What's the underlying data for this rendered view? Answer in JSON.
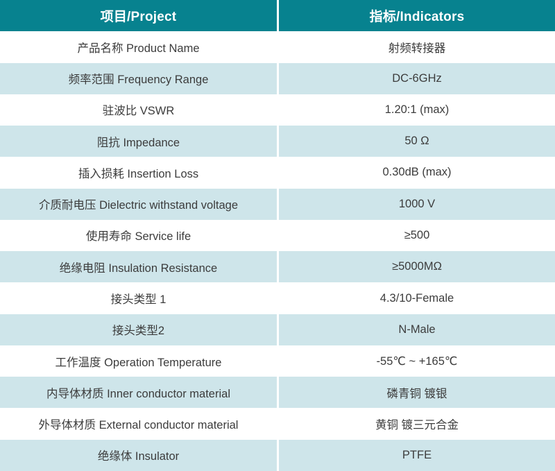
{
  "table": {
    "header": {
      "project": "项目/Project",
      "indicators": "指标/Indicators"
    },
    "rows": [
      {
        "project": "产品名称 Product Name",
        "indicator": "射频转接器"
      },
      {
        "project": "频率范围 Frequency Range",
        "indicator": "DC-6GHz"
      },
      {
        "project": "驻波比 VSWR",
        "indicator": "1.20:1 (max)"
      },
      {
        "project": "阻抗 Impedance",
        "indicator": "50 Ω"
      },
      {
        "project": "插入损耗 Insertion Loss",
        "indicator": "0.30dB (max)"
      },
      {
        "project": "介质耐电压 Dielectric withstand voltage",
        "indicator": "1000 V"
      },
      {
        "project": "使用寿命 Service life",
        "indicator": "≥500"
      },
      {
        "project": "绝缘电阻 Insulation Resistance",
        "indicator": "≥5000MΩ"
      },
      {
        "project": "接头类型 1",
        "indicator": "4.3/10-Female"
      },
      {
        "project": "接头类型2",
        "indicator": "N-Male"
      },
      {
        "project": "工作温度 Operation Temperature",
        "indicator": "-55℃ ~ +165℃"
      },
      {
        "project": "内导体材质 Inner conductor material",
        "indicator": "磷青铜 镀银"
      },
      {
        "project": "外导体材质 External conductor material",
        "indicator": "黄铜 镀三元合金"
      },
      {
        "project": "绝缘体 Insulator",
        "indicator": "PTFE"
      }
    ],
    "colors": {
      "header_bg": "#07828F",
      "alt_row_bg": "#CEE5EA",
      "row_bg": "#FFFFFF",
      "header_text": "#FFFFFF",
      "body_text": "#3C3C3C"
    }
  }
}
